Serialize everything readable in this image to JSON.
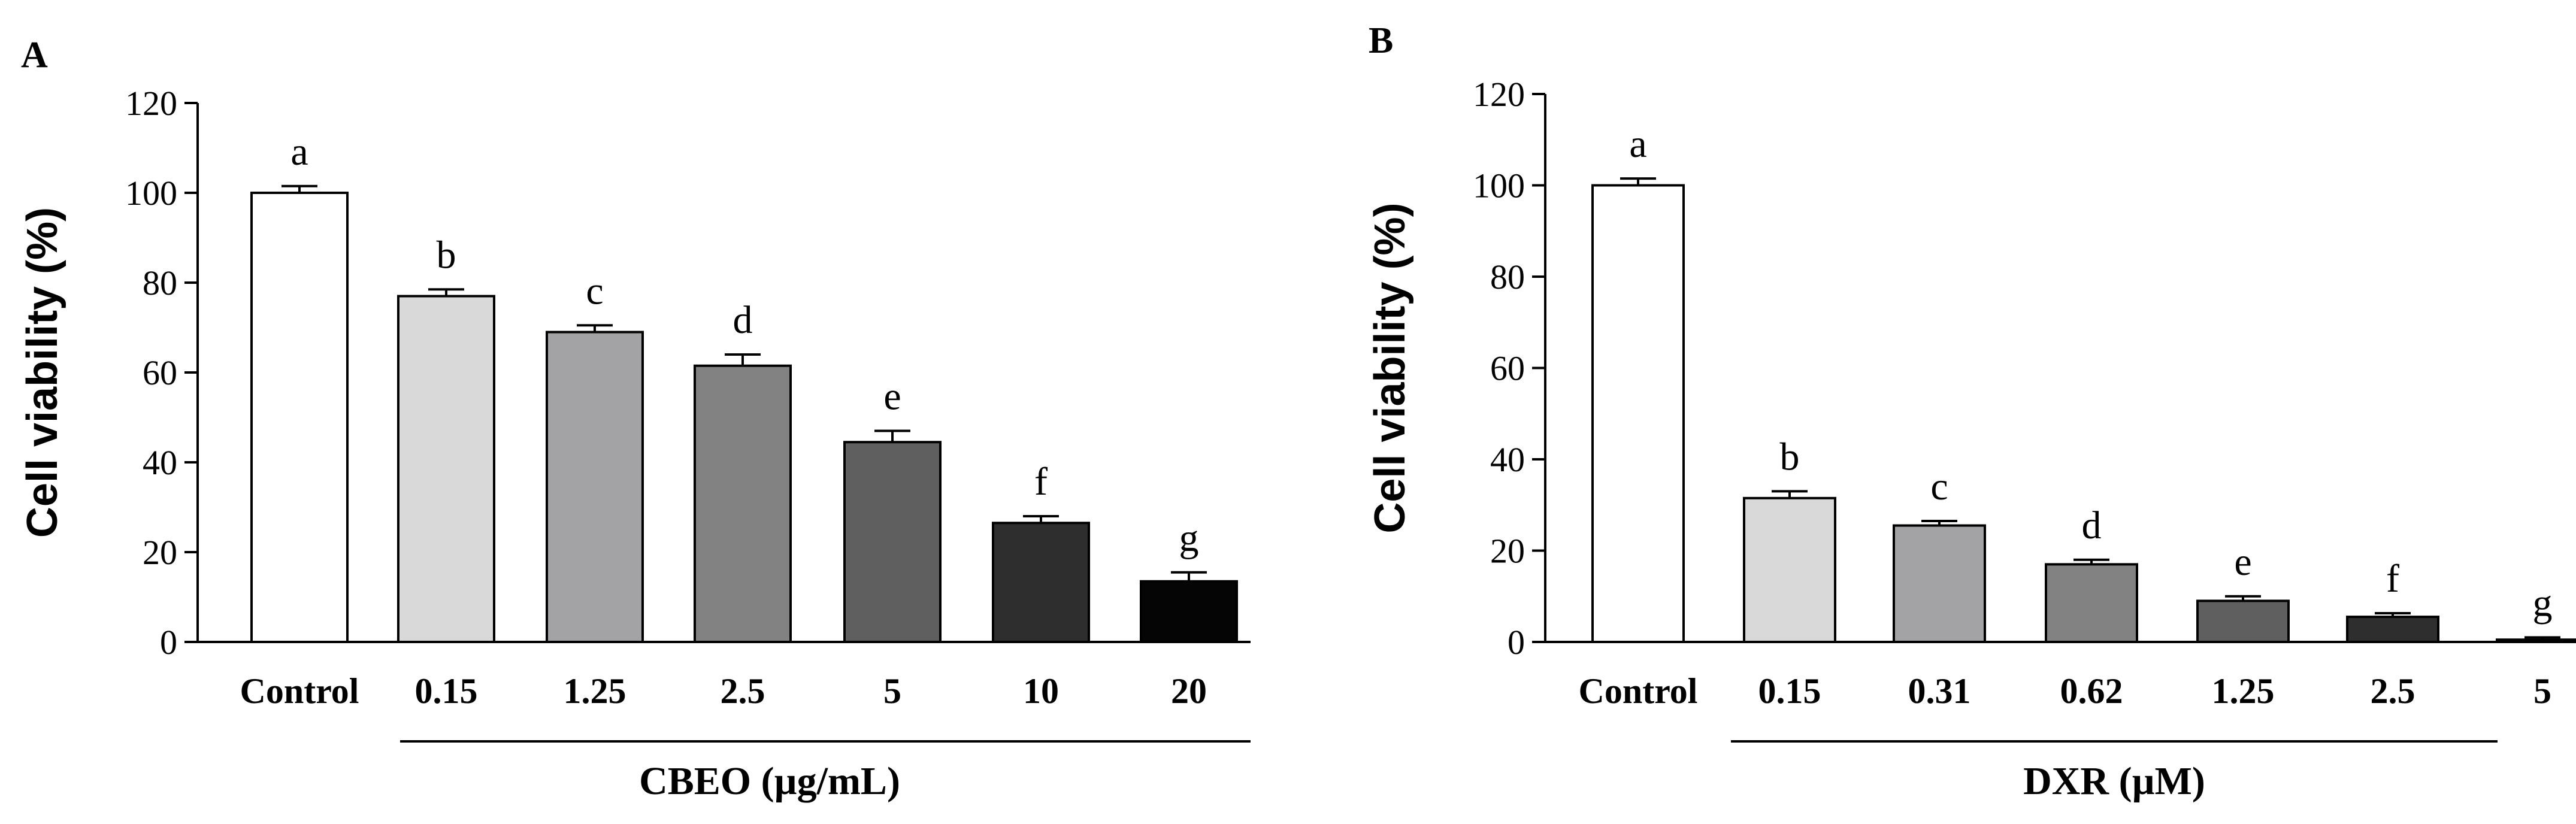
{
  "chart_data": [
    {
      "type": "bar",
      "panel": "A",
      "title": "",
      "xlabel": "CBEO (µg/mL)",
      "ylabel": "Cell viability (%)",
      "ylim": [
        0,
        120
      ],
      "yticks": [
        0,
        20,
        40,
        60,
        80,
        100,
        120
      ],
      "categories": [
        "Control",
        "0.15",
        "1.25",
        "2.5",
        "5",
        "10",
        "20"
      ],
      "values": [
        100,
        77,
        69,
        61.5,
        44.5,
        26.5,
        13.5
      ],
      "errors": [
        1.5,
        1.5,
        1.5,
        2.5,
        2.5,
        1.5,
        2
      ],
      "significance": [
        "a",
        "b",
        "c",
        "d",
        "e",
        "f",
        "g"
      ],
      "bar_colors": [
        "#ffffff",
        "#d9d9d9",
        "#a3a3a6",
        "#828282",
        "#5f5f5f",
        "#2e2e2e",
        "#050505"
      ],
      "grid": false
    },
    {
      "type": "bar",
      "panel": "B",
      "title": "",
      "xlabel": "DXR (µM)",
      "ylabel": "Cell viability (%)",
      "ylim": [
        0,
        120
      ],
      "yticks": [
        0,
        20,
        40,
        60,
        80,
        100,
        120
      ],
      "categories": [
        "Control",
        "0.15",
        "0.31",
        "0.62",
        "1.25",
        "2.5",
        "5"
      ],
      "values": [
        100,
        31.5,
        25.5,
        17,
        9,
        5.5,
        0.5
      ],
      "errors": [
        1.5,
        1.5,
        1,
        1,
        1,
        0.8,
        0.5
      ],
      "significance": [
        "a",
        "b",
        "c",
        "d",
        "e",
        "f",
        "g"
      ],
      "bar_colors": [
        "#ffffff",
        "#d9d9d9",
        "#a3a3a6",
        "#828282",
        "#5f5f5f",
        "#2e2e2e",
        "#050505"
      ],
      "grid": false
    }
  ]
}
